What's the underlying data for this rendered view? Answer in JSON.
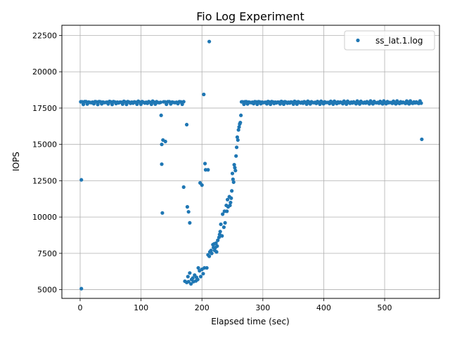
{
  "chart_data": {
    "type": "scatter",
    "title": "Fio Log Experiment",
    "xlabel": "Elapsed time (sec)",
    "ylabel": "IOPS",
    "xlim": [
      -30,
      590
    ],
    "ylim": [
      4400,
      23200
    ],
    "xticks": [
      0,
      100,
      200,
      300,
      400,
      500
    ],
    "yticks": [
      5000,
      7500,
      10000,
      12500,
      15000,
      17500,
      20000,
      22500
    ],
    "xtick_labels": [
      "0",
      "100",
      "200",
      "300",
      "400",
      "500"
    ],
    "ytick_labels": [
      "5000",
      "7500",
      "10000",
      "12500",
      "15000",
      "17500",
      "20000",
      "22500"
    ],
    "grid": true,
    "legend": {
      "position": "top-right",
      "entries": [
        "ss_lat.1.log"
      ]
    },
    "series": [
      {
        "name": "ss_lat.1.log",
        "color": "#1f77b4",
        "points": [
          [
            2,
            5070
          ],
          [
            2,
            12560
          ],
          [
            133,
            17000
          ],
          [
            134,
            15000
          ],
          [
            134,
            13640
          ],
          [
            135,
            10280
          ],
          [
            136,
            15300
          ],
          [
            140,
            15200
          ],
          [
            170,
            12060
          ],
          [
            175,
            16360
          ],
          [
            176,
            10700
          ],
          [
            178,
            10360
          ],
          [
            180,
            9600
          ],
          [
            197,
            12350
          ],
          [
            200,
            12200
          ],
          [
            203,
            18440
          ],
          [
            205,
            13680
          ],
          [
            206,
            13250
          ],
          [
            210,
            13250
          ],
          [
            212,
            22080
          ],
          [
            172,
            5580
          ],
          [
            175,
            5500
          ],
          [
            177,
            5900
          ],
          [
            178,
            5550
          ],
          [
            180,
            6150
          ],
          [
            182,
            5400
          ],
          [
            183,
            5700
          ],
          [
            185,
            5800
          ],
          [
            186,
            5550
          ],
          [
            188,
            6000
          ],
          [
            190,
            5600
          ],
          [
            191,
            5850
          ],
          [
            193,
            5700
          ],
          [
            194,
            6500
          ],
          [
            196,
            6300
          ],
          [
            198,
            5900
          ],
          [
            200,
            6400
          ],
          [
            202,
            6100
          ],
          [
            204,
            6500
          ],
          [
            208,
            6500
          ],
          [
            210,
            7400
          ],
          [
            212,
            7300
          ],
          [
            213,
            7600
          ],
          [
            215,
            7700
          ],
          [
            216,
            7500
          ],
          [
            218,
            8100
          ],
          [
            219,
            7900
          ],
          [
            220,
            8150
          ],
          [
            221,
            7700
          ],
          [
            222,
            7900
          ],
          [
            223,
            8200
          ],
          [
            224,
            7600
          ],
          [
            225,
            8000
          ],
          [
            226,
            8400
          ],
          [
            228,
            8600
          ],
          [
            229,
            8800
          ],
          [
            230,
            9000
          ],
          [
            231,
            9500
          ],
          [
            233,
            8700
          ],
          [
            234,
            10200
          ],
          [
            236,
            9300
          ],
          [
            237,
            10400
          ],
          [
            238,
            9600
          ],
          [
            240,
            10800
          ],
          [
            241,
            10400
          ],
          [
            242,
            11200
          ],
          [
            243,
            10700
          ],
          [
            245,
            11400
          ],
          [
            246,
            10800
          ],
          [
            247,
            11000
          ],
          [
            248,
            11300
          ],
          [
            249,
            11800
          ],
          [
            250,
            13000
          ],
          [
            251,
            12600
          ],
          [
            252,
            12400
          ],
          [
            253,
            13600
          ],
          [
            254,
            13400
          ],
          [
            255,
            13200
          ],
          [
            256,
            14200
          ],
          [
            257,
            14800
          ],
          [
            258,
            15500
          ],
          [
            259,
            15300
          ],
          [
            260,
            16000
          ],
          [
            261,
            16200
          ],
          [
            262,
            16400
          ],
          [
            263,
            16500
          ],
          [
            264,
            17000
          ],
          [
            561,
            15350
          ]
        ],
        "plateaus": [
          {
            "x_start": 1,
            "x_end": 132,
            "level": 17880,
            "spread": 130,
            "count": 62
          },
          {
            "x_start": 137,
            "x_end": 170,
            "level": 17880,
            "spread": 120,
            "count": 15
          },
          {
            "x_start": 265,
            "x_end": 560,
            "level": 17880,
            "spread": 120,
            "count": 150
          }
        ]
      }
    ]
  }
}
